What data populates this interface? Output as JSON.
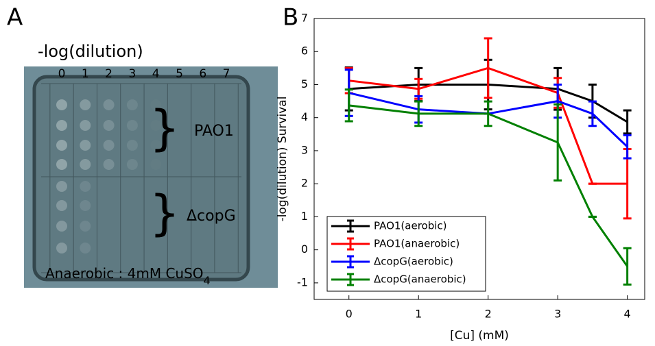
{
  "panel_a": {
    "label": "A",
    "title": "-log(dilution)",
    "columns": [
      "0",
      "1",
      "2",
      "3",
      "4",
      "5",
      "6",
      "7"
    ],
    "groups": [
      "PAO1",
      "ΔcopG"
    ],
    "caption": {
      "text": "Anaerobic : 4mM CuSO",
      "subscript": "4"
    }
  },
  "chart_data": {
    "type": "line",
    "label": "B",
    "xlabel": "[Cu] (mM)",
    "ylabel": "-log(dilution) Survival",
    "x": [
      0,
      1,
      2,
      3,
      3.5,
      4
    ],
    "series": [
      {
        "name": "PAO1(aerobic)",
        "color": "#000000",
        "values": [
          4.87,
          5.0,
          5.0,
          4.87,
          4.5,
          3.87
        ],
        "errors": [
          0.65,
          0.5,
          0.75,
          0.63,
          0.5,
          0.35
        ]
      },
      {
        "name": "PAO1(anaerobic)",
        "color": "#ff0000",
        "values": [
          5.12,
          4.87,
          5.5,
          4.75,
          2.0,
          2.0
        ],
        "errors": [
          0.38,
          0.3,
          0.9,
          0.45,
          0,
          1.05
        ]
      },
      {
        "name": "ΔcopG(aerobic)",
        "color": "#0000ff",
        "values": [
          4.75,
          4.25,
          4.12,
          4.5,
          4.12,
          3.12
        ],
        "errors": [
          0.7,
          0.4,
          0,
          0.5,
          0.37,
          0.35
        ]
      },
      {
        "name": "ΔcopG(anaerobic)",
        "color": "#008000",
        "values": [
          4.37,
          4.12,
          4.12,
          3.25,
          1.0,
          -0.5
        ],
        "errors": [
          0.48,
          0.37,
          0.37,
          1.15,
          0,
          0.55
        ]
      }
    ],
    "xlim": [
      -0.5,
      4.25
    ],
    "ylim": [
      -1.5,
      7
    ],
    "xticks": [
      0,
      1,
      2,
      3,
      4
    ],
    "yticks": [
      -1,
      0,
      1,
      2,
      3,
      4,
      5,
      6,
      7
    ],
    "grid": false,
    "legend": "lower left"
  }
}
